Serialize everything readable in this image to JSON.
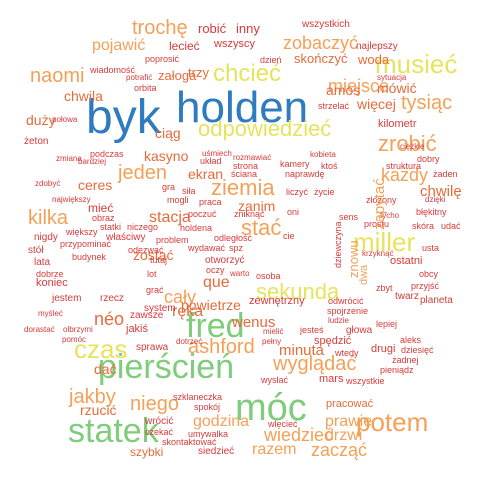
{
  "palette": {
    "blue": "#2f7bbf",
    "green": "#7fcc7a",
    "orange": "#f4a157",
    "red": "#d63b3b",
    "yellow": "#e6e35d",
    "dark_orange": "#e66b3a",
    "light_green": "#a6d854"
  },
  "words": [
    {
      "text": "holden",
      "color": "blue"
    },
    {
      "text": "byk",
      "color": "blue"
    },
    {
      "text": "pierścień",
      "color": "green"
    },
    {
      "text": "móc",
      "color": "green"
    },
    {
      "text": "statek",
      "color": "green"
    },
    {
      "text": "fred",
      "color": "green"
    },
    {
      "text": "chcieć",
      "color": "yellow"
    },
    {
      "text": "musieć",
      "color": "yellow"
    },
    {
      "text": "odpowiedzieć",
      "color": "yellow"
    },
    {
      "text": "miller",
      "color": "yellow"
    },
    {
      "text": "sekunda",
      "color": "yellow"
    },
    {
      "text": "czas",
      "color": "yellow"
    },
    {
      "text": "ashford",
      "color": "orange"
    },
    {
      "text": "potem",
      "color": "orange"
    },
    {
      "text": "naomi",
      "color": "orange"
    },
    {
      "text": "zrobić",
      "color": "orange"
    },
    {
      "text": "ziemia",
      "color": "orange"
    },
    {
      "text": "stać",
      "color": "orange"
    },
    {
      "text": "wyglądać",
      "color": "orange"
    },
    {
      "text": "jakby",
      "color": "orange"
    },
    {
      "text": "niego",
      "color": "orange"
    },
    {
      "text": "trochę",
      "color": "orange"
    },
    {
      "text": "zobaczyć",
      "color": "orange"
    },
    {
      "text": "kilka",
      "color": "orange"
    },
    {
      "text": "tysiąc",
      "color": "orange"
    },
    {
      "text": "jeden",
      "color": "orange"
    },
    {
      "text": "każdy",
      "color": "orange"
    },
    {
      "text": "zapytać",
      "color": "orange"
    },
    {
      "text": "cały",
      "color": "orange"
    },
    {
      "text": "wiedzieć",
      "color": "orange"
    },
    {
      "text": "zacząć",
      "color": "orange"
    },
    {
      "text": "prawie",
      "color": "orange"
    },
    {
      "text": "godzina",
      "color": "orange"
    },
    {
      "text": "razem",
      "color": "orange"
    },
    {
      "text": "drzwi",
      "color": "orange"
    },
    {
      "text": "miejsce",
      "color": "orange"
    },
    {
      "text": "pojawić",
      "color": "orange"
    },
    {
      "text": "chwila",
      "color": "dark_orange"
    },
    {
      "text": "chwilę",
      "color": "dark_orange"
    },
    {
      "text": "ręka",
      "color": "dark_orange"
    },
    {
      "text": "néo",
      "color": "dark_orange"
    },
    {
      "text": "dać",
      "color": "dark_orange"
    },
    {
      "text": "rzucić",
      "color": "dark_orange"
    },
    {
      "text": "minuta",
      "color": "dark_orange"
    },
    {
      "text": "wenus",
      "color": "dark_orange"
    },
    {
      "text": "ciąg",
      "color": "dark_orange"
    },
    {
      "text": "stacja",
      "color": "dark_orange"
    },
    {
      "text": "ekran",
      "color": "dark_orange"
    },
    {
      "text": "zanim",
      "color": "dark_orange"
    },
    {
      "text": "kasyno",
      "color": "dark_orange"
    },
    {
      "text": "duży",
      "color": "dark_orange"
    },
    {
      "text": "woda",
      "color": "dark_orange"
    },
    {
      "text": "skończyć",
      "color": "dark_orange"
    },
    {
      "text": "amos",
      "color": "dark_orange"
    },
    {
      "text": "więcej",
      "color": "dark_orange"
    },
    {
      "text": "mówić",
      "color": "dark_orange"
    },
    {
      "text": "trzy",
      "color": "dark_orange"
    },
    {
      "text": "załoga",
      "color": "dark_orange"
    },
    {
      "text": "ceres",
      "color": "dark_orange"
    },
    {
      "text": "zostać",
      "color": "dark_orange"
    },
    {
      "text": "que",
      "color": "dark_orange"
    },
    {
      "text": "powietrze",
      "color": "dark_orange"
    },
    {
      "text": "pracować",
      "color": "dark_orange"
    },
    {
      "text": "szybki",
      "color": "dark_orange"
    },
    {
      "text": "wrócić",
      "color": "red"
    },
    {
      "text": "robić",
      "color": "red"
    },
    {
      "text": "inny",
      "color": "red"
    },
    {
      "text": "wszystkich",
      "color": "red"
    },
    {
      "text": "wszyscy",
      "color": "red"
    },
    {
      "text": "najlepszy",
      "color": "red"
    },
    {
      "text": "lecieć",
      "color": "red"
    },
    {
      "text": "poprosić",
      "color": "red"
    },
    {
      "text": "wiadomość",
      "color": "red"
    },
    {
      "text": "dzień",
      "color": "red"
    },
    {
      "text": "potrafić",
      "color": "red"
    },
    {
      "text": "orbita",
      "color": "red"
    },
    {
      "text": "sytuacja",
      "color": "red"
    },
    {
      "text": "połowa",
      "color": "red"
    },
    {
      "text": "strzelać",
      "color": "red"
    },
    {
      "text": "kilometr",
      "color": "red"
    },
    {
      "text": "żeton",
      "color": "red"
    },
    {
      "text": "zmiana",
      "color": "red"
    },
    {
      "text": "podczas",
      "color": "red"
    },
    {
      "text": "uśmiech",
      "color": "red"
    },
    {
      "text": "układ",
      "color": "red"
    },
    {
      "text": "rozmawiać",
      "color": "red"
    },
    {
      "text": "kobieta",
      "color": "red"
    },
    {
      "text": "ciężkie",
      "color": "red"
    },
    {
      "text": "dobry",
      "color": "red"
    },
    {
      "text": "żaden",
      "color": "red"
    },
    {
      "text": "struktura",
      "color": "red"
    },
    {
      "text": "bardziej",
      "color": "red"
    },
    {
      "text": "zdobyć",
      "color": "red"
    },
    {
      "text": "strona",
      "color": "red"
    },
    {
      "text": "kamery",
      "color": "red"
    },
    {
      "text": "ktoś",
      "color": "red"
    },
    {
      "text": "naprawdę",
      "color": "red"
    },
    {
      "text": "ściana",
      "color": "red"
    },
    {
      "text": "gra",
      "color": "red"
    },
    {
      "text": "siła",
      "color": "red"
    },
    {
      "text": "liczyć",
      "color": "red"
    },
    {
      "text": "życie",
      "color": "red"
    },
    {
      "text": "dzięki",
      "color": "red"
    },
    {
      "text": "największy",
      "color": "red"
    },
    {
      "text": "mogli",
      "color": "red"
    },
    {
      "text": "praca",
      "color": "red"
    },
    {
      "text": "złożony",
      "color": "red"
    },
    {
      "text": "błękitny",
      "color": "red"
    },
    {
      "text": "mieć",
      "color": "red"
    },
    {
      "text": "poczuć",
      "color": "red"
    },
    {
      "text": "zniknąć",
      "color": "red"
    },
    {
      "text": "oni",
      "color": "red"
    },
    {
      "text": "tycho",
      "color": "red"
    },
    {
      "text": "skóra",
      "color": "red"
    },
    {
      "text": "udać",
      "color": "red"
    },
    {
      "text": "obraz",
      "color": "red"
    },
    {
      "text": "statki",
      "color": "red"
    },
    {
      "text": "niczego",
      "color": "red"
    },
    {
      "text": "holdena",
      "color": "red"
    },
    {
      "text": "sens",
      "color": "red"
    },
    {
      "text": "prostu",
      "color": "red"
    },
    {
      "text": "nigdy",
      "color": "red"
    },
    {
      "text": "większy",
      "color": "red"
    },
    {
      "text": "właściwy",
      "color": "red"
    },
    {
      "text": "problem",
      "color": "red"
    },
    {
      "text": "odległość",
      "color": "red"
    },
    {
      "text": "cie",
      "color": "red"
    },
    {
      "text": "usta",
      "color": "red"
    },
    {
      "text": "stół",
      "color": "red"
    },
    {
      "text": "przypominać",
      "color": "red"
    },
    {
      "text": "odezwać",
      "color": "red"
    },
    {
      "text": "wydawać",
      "color": "red"
    },
    {
      "text": "spz",
      "color": "red"
    },
    {
      "text": "ostatni",
      "color": "red"
    },
    {
      "text": "lata",
      "color": "red"
    },
    {
      "text": "budynek",
      "color": "red"
    },
    {
      "text": "tutaj",
      "color": "red"
    },
    {
      "text": "otworzyć",
      "color": "red"
    },
    {
      "text": "krzyknąć",
      "color": "red"
    },
    {
      "text": "obcy",
      "color": "red"
    },
    {
      "text": "dobrze",
      "color": "red"
    },
    {
      "text": "lot",
      "color": "red"
    },
    {
      "text": "oczy",
      "color": "red"
    },
    {
      "text": "warto",
      "color": "red"
    },
    {
      "text": "osoba",
      "color": "red"
    },
    {
      "text": "koniec",
      "color": "red"
    },
    {
      "text": "grać",
      "color": "red"
    },
    {
      "text": "zbyt",
      "color": "red"
    },
    {
      "text": "przyjść",
      "color": "red"
    },
    {
      "text": "jestem",
      "color": "red"
    },
    {
      "text": "rzecz",
      "color": "red"
    },
    {
      "text": "zewnętrzny",
      "color": "red"
    },
    {
      "text": "odwrócić",
      "color": "red"
    },
    {
      "text": "twarz",
      "color": "red"
    },
    {
      "text": "planeta",
      "color": "red"
    },
    {
      "text": "myśleć",
      "color": "red"
    },
    {
      "text": "system",
      "color": "red"
    },
    {
      "text": "spojrzenie",
      "color": "red"
    },
    {
      "text": "dorastać",
      "color": "red"
    },
    {
      "text": "olbrzymi",
      "color": "red"
    },
    {
      "text": "ludzie",
      "color": "red"
    },
    {
      "text": "lepiej",
      "color": "red"
    },
    {
      "text": "jakiś",
      "color": "red"
    },
    {
      "text": "mielić",
      "color": "red"
    },
    {
      "text": "jesteś",
      "color": "red"
    },
    {
      "text": "głowa",
      "color": "red"
    },
    {
      "text": "pomóc",
      "color": "red"
    },
    {
      "text": "sprawa",
      "color": "red"
    },
    {
      "text": "dotrzeć",
      "color": "red"
    },
    {
      "text": "pełny",
      "color": "red"
    },
    {
      "text": "spędzić",
      "color": "red"
    },
    {
      "text": "aleks",
      "color": "red"
    },
    {
      "text": "drugi",
      "color": "red"
    },
    {
      "text": "dziesięć",
      "color": "red"
    },
    {
      "text": "wtedy",
      "color": "red"
    },
    {
      "text": "żadnej",
      "color": "red"
    },
    {
      "text": "pieniądz",
      "color": "red"
    },
    {
      "text": "wysłać",
      "color": "red"
    },
    {
      "text": "mars",
      "color": "red"
    },
    {
      "text": "wszystkie",
      "color": "red"
    },
    {
      "text": "szklaneczka",
      "color": "red"
    },
    {
      "text": "spokój",
      "color": "red"
    },
    {
      "text": "czekać",
      "color": "red"
    },
    {
      "text": "umywalka",
      "color": "red"
    },
    {
      "text": "wlecieć",
      "color": "red"
    },
    {
      "text": "skontaktować",
      "color": "red"
    },
    {
      "text": "siedzieć",
      "color": "red"
    },
    {
      "text": "zawsze",
      "color": "red"
    },
    {
      "text": "dziewczyna",
      "color": "red"
    },
    {
      "text": "znowu",
      "color": "orange"
    },
    {
      "text": "dwa",
      "color": "orange"
    }
  ]
}
